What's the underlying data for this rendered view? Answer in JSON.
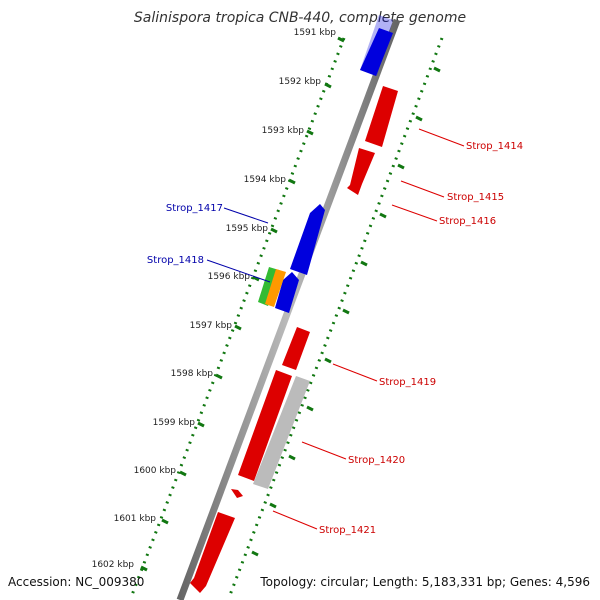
{
  "title": "Salinispora tropica CNB-440, complete genome",
  "footer": {
    "accession": "Accession: NC_009380",
    "stats": "Topology: circular; Length: 5,183,331 bp; Genes: 4,596"
  },
  "ruler": {
    "labels": [
      "1591 kbp",
      "1592 kbp",
      "1593 kbp",
      "1594 kbp",
      "1595 kbp",
      "1596 kbp",
      "1597 kbp",
      "1598 kbp",
      "1599 kbp",
      "1600 kbp",
      "1601 kbp",
      "1602 kbp"
    ]
  },
  "gene_labels": {
    "strop_1414": "Strop_1414",
    "strop_1415": "Strop_1415",
    "strop_1416": "Strop_1416",
    "strop_1417": "Strop_1417",
    "strop_1418": "Strop_1418",
    "strop_1419": "Strop_1419",
    "strop_1420": "Strop_1420",
    "strop_1421": "Strop_1421"
  },
  "colors": {
    "forward_cds": "#dd0000",
    "reverse_cds": "#0000dd",
    "other_feature": "#bbbbbb",
    "green_feature": "#33bb33",
    "orange_feature": "#ff9900",
    "ruler_ticks": "#117711",
    "backbone": "#888888"
  }
}
